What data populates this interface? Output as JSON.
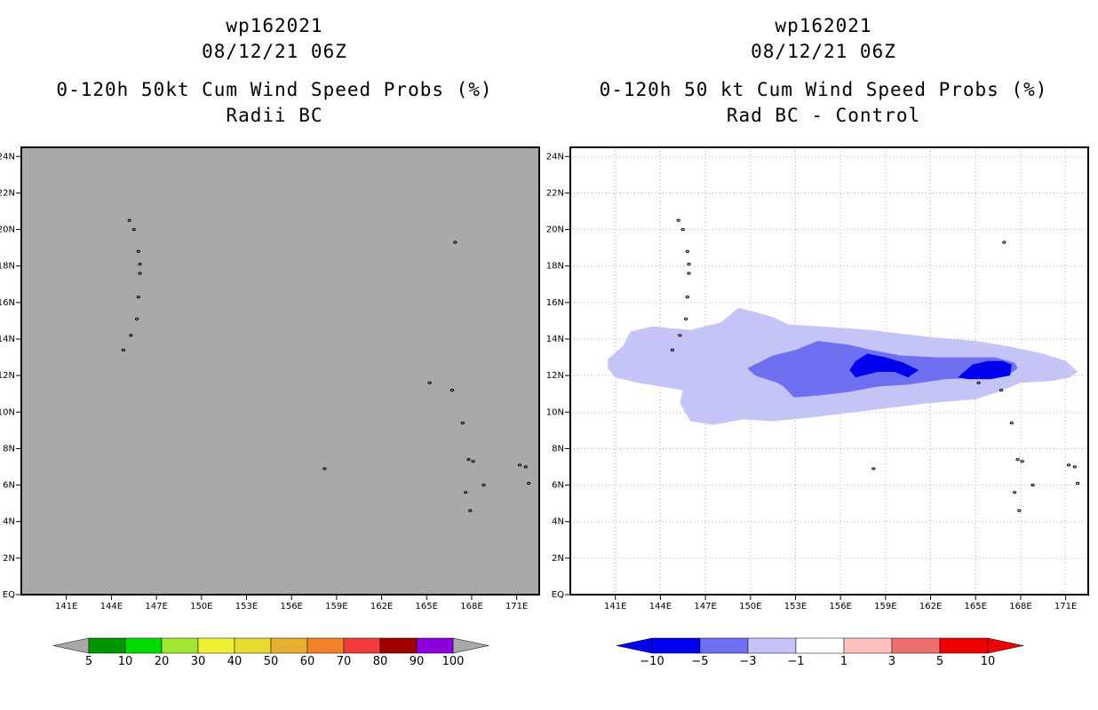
{
  "colors": {
    "gray_panel": "#a9a9a9",
    "blue_light": "#c4c4f6",
    "blue_mid": "#6f6ff2",
    "blue_dark": "#0000ee",
    "grid": "#b0b0b0"
  },
  "chart_data": [
    {
      "type": "heatmap",
      "storm_id": "wp162021",
      "date": "08/12/21 06Z",
      "title": "0-120h 50kt Cum Wind Speed Probs (%)",
      "subtitle": "Radii BC",
      "xlabel": "",
      "ylabel": "",
      "xlim": [
        138,
        172.5
      ],
      "ylim": [
        0,
        24.5
      ],
      "xticks": [
        "141E",
        "144E",
        "147E",
        "150E",
        "153E",
        "156E",
        "159E",
        "162E",
        "165E",
        "168E",
        "171E"
      ],
      "yticks": [
        "EQ",
        "2N",
        "4N",
        "6N",
        "8N",
        "10N",
        "12N",
        "14N",
        "16N",
        "18N",
        "20N",
        "22N",
        "24N"
      ],
      "grid": false,
      "field": "uniformly below 5% (gray fill)",
      "colorbar": {
        "ticks": [
          "5",
          "10",
          "20",
          "30",
          "40",
          "50",
          "60",
          "70",
          "80",
          "90",
          "100"
        ],
        "colors": [
          "#009600",
          "#00dc00",
          "#a0e632",
          "#f0f032",
          "#e6dc32",
          "#e6af2d",
          "#f08228",
          "#f03c3c",
          "#a00000",
          "#8c00dc"
        ]
      }
    },
    {
      "type": "heatmap",
      "storm_id": "wp162021",
      "date": "08/12/21 06Z",
      "title": "0-120h 50 kt Cum Wind Speed Probs (%)",
      "subtitle": "Rad BC - Control",
      "xlabel": "",
      "ylabel": "",
      "xlim": [
        138,
        172.5
      ],
      "ylim": [
        0,
        24.5
      ],
      "xticks": [
        "141E",
        "144E",
        "147E",
        "150E",
        "153E",
        "156E",
        "159E",
        "162E",
        "165E",
        "168E",
        "171E"
      ],
      "yticks": [
        "EQ",
        "2N",
        "4N",
        "6N",
        "8N",
        "10N",
        "12N",
        "14N",
        "16N",
        "18N",
        "20N",
        "22N",
        "24N"
      ],
      "grid": true,
      "contours": [
        {
          "level": "-3 to -1",
          "polygon": [
            [
              140.5,
              12.9
            ],
            [
              141.5,
              13.6
            ],
            [
              142,
              14.4
            ],
            [
              143.5,
              14.7
            ],
            [
              144.6,
              14.6
            ],
            [
              146,
              14.5
            ],
            [
              148,
              14.9
            ],
            [
              149.2,
              15.7
            ],
            [
              150.2,
              15.5
            ],
            [
              151.5,
              15.2
            ],
            [
              152.5,
              14.8
            ],
            [
              154.5,
              14.7
            ],
            [
              158,
              14.5
            ],
            [
              162,
              14.1
            ],
            [
              165,
              13.9
            ],
            [
              167.2,
              13.6
            ],
            [
              169.5,
              13.2
            ],
            [
              171,
              12.8
            ],
            [
              171.8,
              12.2
            ],
            [
              171.3,
              11.9
            ],
            [
              170,
              11.7
            ],
            [
              168,
              11.6
            ],
            [
              166.5,
              11.1
            ],
            [
              165,
              10.7
            ],
            [
              162,
              10.5
            ],
            [
              158,
              10.1
            ],
            [
              154,
              9.7
            ],
            [
              151.5,
              9.5
            ],
            [
              149.5,
              9.6
            ],
            [
              147.5,
              9.3
            ],
            [
              146,
              9.5
            ],
            [
              145.3,
              10.5
            ],
            [
              145.5,
              11.2
            ],
            [
              144,
              11.4
            ],
            [
              142.5,
              11.6
            ],
            [
              141,
              11.9
            ],
            [
              140.5,
              12.4
            ]
          ]
        },
        {
          "level": "-5 to -3",
          "polygon": [
            [
              149.8,
              12.4
            ],
            [
              151.5,
              13.1
            ],
            [
              153,
              13.4
            ],
            [
              154.5,
              13.9
            ],
            [
              156.5,
              13.7
            ],
            [
              158,
              13.4
            ],
            [
              160,
              13.1
            ],
            [
              162.5,
              13.0
            ],
            [
              164.5,
              13.0
            ],
            [
              166.3,
              13.0
            ],
            [
              167.6,
              12.7
            ],
            [
              167.8,
              12.4
            ],
            [
              167.3,
              12.1
            ],
            [
              165.5,
              11.9
            ],
            [
              163,
              11.8
            ],
            [
              160.5,
              11.5
            ],
            [
              158.5,
              11.4
            ],
            [
              156.5,
              11.1
            ],
            [
              154.5,
              10.9
            ],
            [
              152.9,
              10.8
            ],
            [
              152.2,
              11.4
            ],
            [
              151.8,
              11.6
            ],
            [
              150.3,
              12.0
            ]
          ]
        },
        {
          "level": "-10 to -5",
          "polygon": [
            [
              156.6,
              12.3
            ],
            [
              157,
              12.8
            ],
            [
              157.8,
              13.2
            ],
            [
              159,
              13.0
            ],
            [
              160.2,
              12.7
            ],
            [
              161.2,
              12.3
            ],
            [
              160.5,
              11.9
            ],
            [
              159.6,
              12.2
            ],
            [
              158.5,
              12.2
            ],
            [
              157.5,
              12.0
            ],
            [
              157,
              11.9
            ]
          ]
        },
        {
          "level": "-10 to -5",
          "polygon": [
            [
              163.8,
              11.9
            ],
            [
              164.8,
              12.6
            ],
            [
              165.8,
              12.8
            ],
            [
              166.8,
              12.8
            ],
            [
              167.4,
              12.6
            ],
            [
              167.3,
              12.0
            ],
            [
              166,
              11.8
            ],
            [
              164.5,
              11.8
            ]
          ]
        }
      ],
      "colorbar": {
        "ticks": [
          "-10",
          "-5",
          "-3",
          "-1",
          "1",
          "3",
          "5",
          "10"
        ],
        "colors": [
          "#0000ee",
          "#6f6ff2",
          "#c4c4f6",
          "#ffffff",
          "#ffc0c0",
          "#f07070",
          "#ee0000"
        ]
      }
    }
  ]
}
